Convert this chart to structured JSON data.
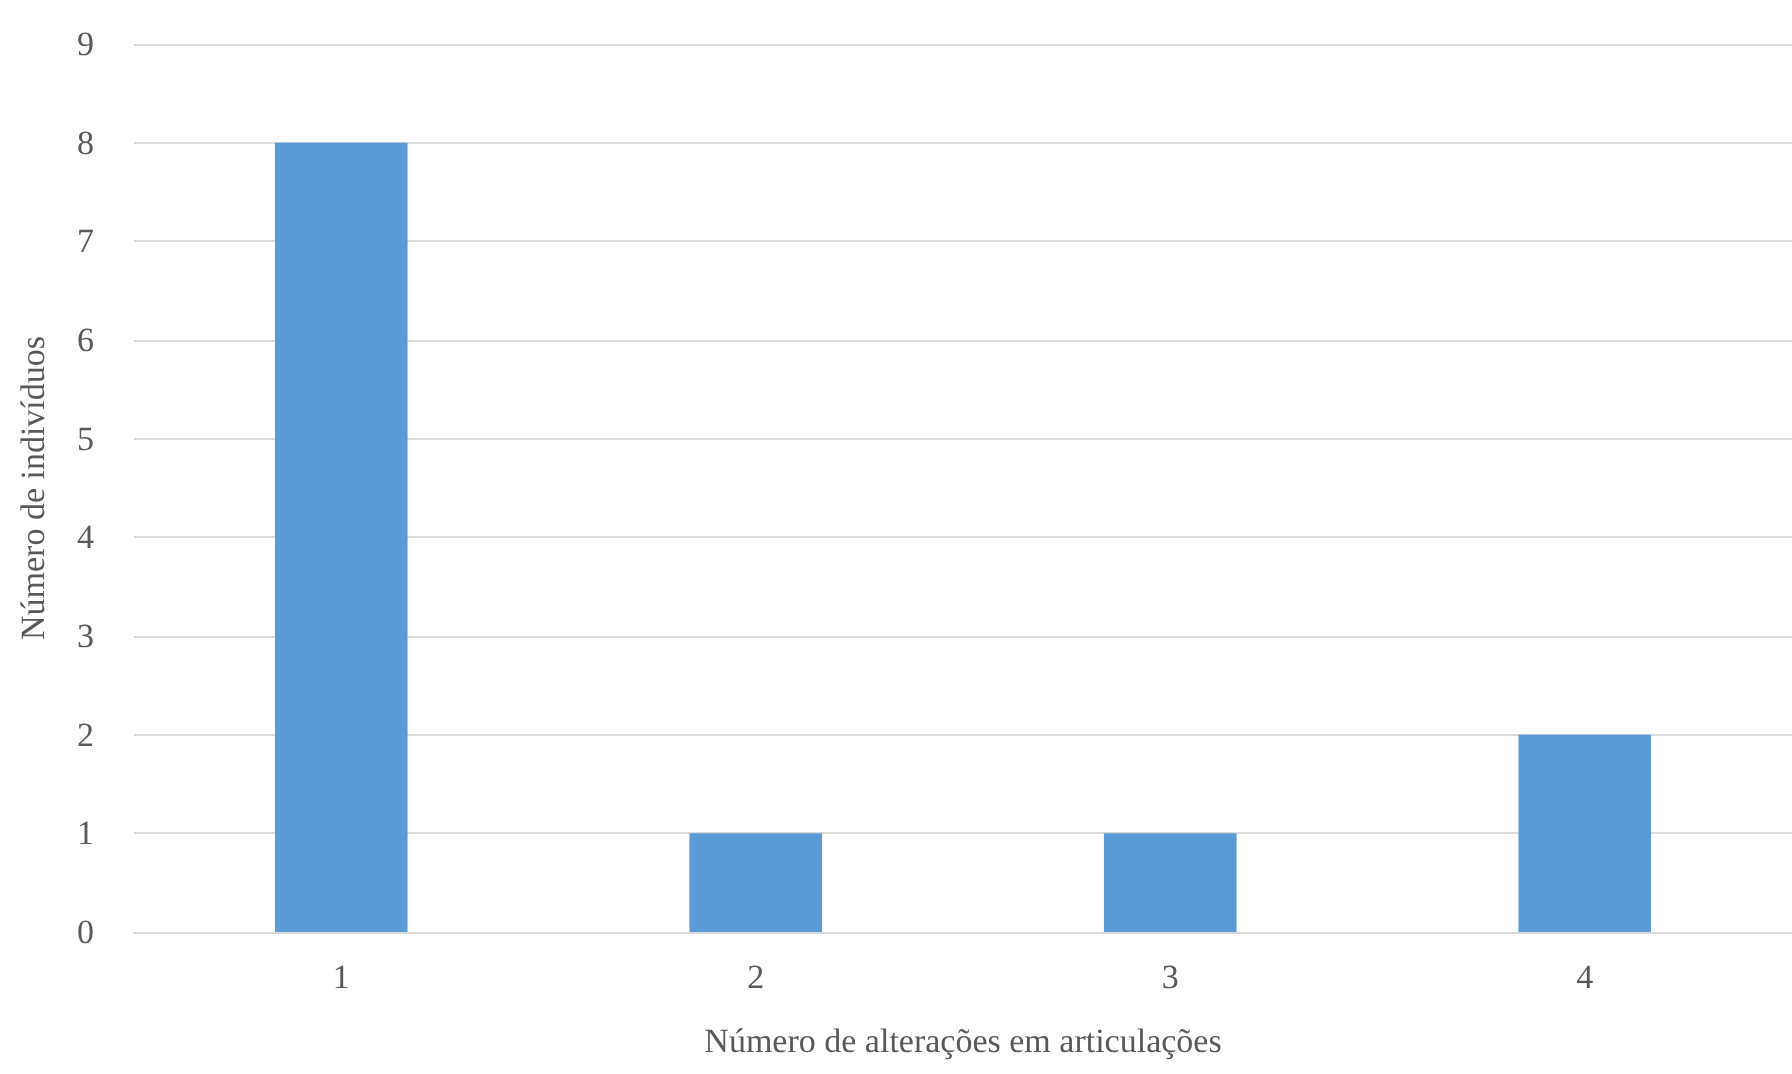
{
  "chart_data": {
    "type": "bar",
    "xlabel": "Número de alterações em articulações",
    "ylabel": "Número de indivíduos",
    "categories": [
      "1",
      "2",
      "3",
      "4"
    ],
    "values": [
      8,
      1,
      1,
      2
    ],
    "color": "#5b9bd5",
    "ylim": [
      0,
      9
    ],
    "yticks": [
      0,
      1,
      2,
      3,
      4,
      5,
      6,
      7,
      8,
      9
    ],
    "grid": "y"
  }
}
